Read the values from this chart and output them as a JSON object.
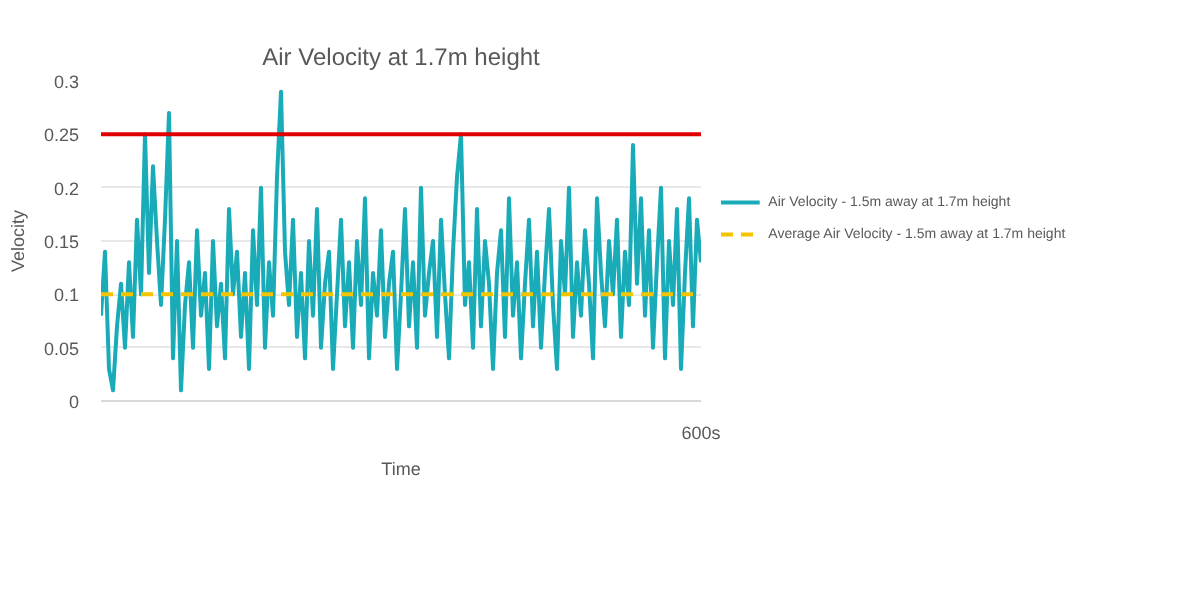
{
  "chart_data": {
    "type": "line",
    "title": "Air Velocity at 1.7m height",
    "xlabel": "Time",
    "ylabel": "Velocity",
    "categories": [
      null,
      null,
      null,
      null,
      null,
      null,
      null,
      null,
      null,
      null,
      null,
      null,
      null,
      null,
      null,
      null,
      null,
      null,
      null,
      null,
      null,
      null,
      null,
      null,
      null,
      null,
      null,
      null,
      null,
      null,
      null,
      null,
      null,
      null,
      null,
      null,
      null,
      null,
      null,
      null,
      null,
      null,
      null,
      null,
      null,
      null,
      null,
      null,
      null,
      null,
      null,
      null,
      null,
      null,
      null,
      null,
      null,
      null,
      null,
      null,
      null,
      null,
      null,
      null,
      null,
      null,
      null,
      null,
      null,
      null,
      null,
      null,
      null,
      null,
      null,
      null,
      null,
      null,
      null,
      null,
      null,
      null,
      null,
      null,
      null,
      null,
      null,
      null,
      null,
      null,
      null,
      null,
      null,
      null,
      null,
      null,
      null,
      null,
      null,
      null,
      null,
      null,
      null,
      null,
      null,
      null,
      null,
      null,
      null,
      null,
      null,
      null,
      null,
      null,
      null,
      null,
      null,
      null,
      null,
      null,
      null,
      null,
      null,
      null,
      null,
      null,
      null,
      null,
      null,
      null,
      null,
      null,
      null,
      null,
      null,
      null,
      null,
      null,
      null,
      null,
      null,
      null,
      null,
      null,
      null,
      null,
      null,
      null,
      null,
      null,
      null
    ],
    "series": [
      {
        "name": "Air Velocity - 1.5m away at 1.7m height",
        "color": "#1aabb8",
        "values": [
          0.08,
          0.14,
          0.03,
          0.01,
          0.07,
          0.11,
          0.05,
          0.13,
          0.06,
          0.17,
          0.1,
          0.25,
          0.12,
          0.22,
          0.15,
          0.09,
          0.17,
          0.27,
          0.04,
          0.15,
          0.01,
          0.09,
          0.13,
          0.05,
          0.16,
          0.08,
          0.12,
          0.03,
          0.15,
          0.07,
          0.11,
          0.04,
          0.18,
          0.1,
          0.14,
          0.06,
          0.12,
          0.03,
          0.16,
          0.09,
          0.2,
          0.05,
          0.13,
          0.08,
          0.21,
          0.29,
          0.14,
          0.09,
          0.17,
          0.06,
          0.12,
          0.04,
          0.15,
          0.08,
          0.18,
          0.05,
          0.11,
          0.14,
          0.03,
          0.1,
          0.17,
          0.07,
          0.13,
          0.05,
          0.15,
          0.09,
          0.19,
          0.04,
          0.12,
          0.08,
          0.16,
          0.06,
          0.11,
          0.14,
          0.03,
          0.1,
          0.18,
          0.07,
          0.13,
          0.05,
          0.2,
          0.08,
          0.12,
          0.15,
          0.06,
          0.17,
          0.1,
          0.04,
          0.14,
          0.21,
          0.25,
          0.09,
          0.13,
          0.05,
          0.18,
          0.07,
          0.15,
          0.11,
          0.03,
          0.12,
          0.16,
          0.06,
          0.19,
          0.08,
          0.13,
          0.04,
          0.11,
          0.17,
          0.07,
          0.14,
          0.05,
          0.12,
          0.18,
          0.09,
          0.03,
          0.15,
          0.1,
          0.2,
          0.06,
          0.13,
          0.08,
          0.16,
          0.11,
          0.04,
          0.19,
          0.12,
          0.07,
          0.15,
          0.1,
          0.17,
          0.06,
          0.14,
          0.09,
          0.24,
          0.11,
          0.19,
          0.08,
          0.16,
          0.05,
          0.13,
          0.2,
          0.04,
          0.15,
          0.09,
          0.18,
          0.03,
          0.12,
          0.19,
          0.07,
          0.17,
          0.13
        ]
      }
    ],
    "ylim": [
      0,
      0.3
    ],
    "yticks": [
      0,
      0.05,
      0.1,
      0.15,
      0.2,
      0.25,
      0.3
    ],
    "ref_lines": [
      {
        "axis": "y",
        "value": 0.25,
        "label": null,
        "color": "#e00000"
      },
      {
        "axis": "y",
        "value": 0.1,
        "label": "Average Air Velocity - 1.5m away at 1.7m height",
        "color": "#f5c400",
        "line_style": "dashed"
      }
    ],
    "annotations": [
      "600s"
    ],
    "grid": "y",
    "legend": "right"
  }
}
